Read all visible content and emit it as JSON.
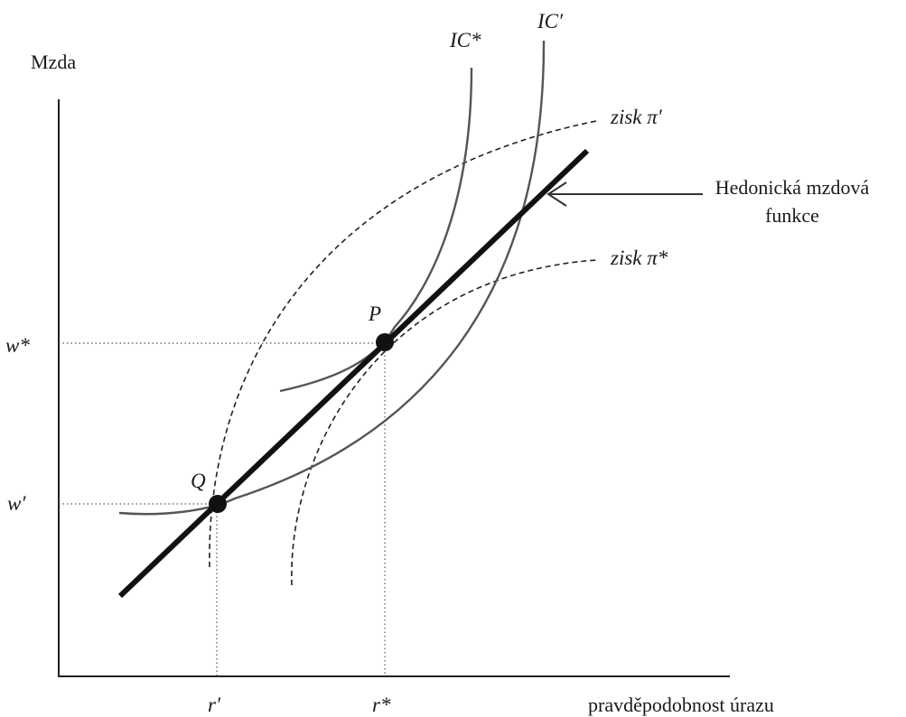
{
  "y_axis_label": "Mzda",
  "x_axis_label": "pravděpodobnost úrazu",
  "hedonic_label_line1": "Hedonická mzdová",
  "hedonic_label_line2": "funkce",
  "ic_star_label": "IC*",
  "ic_prime_label": "IC′",
  "profit_prime_label": "zisk  π′",
  "profit_star_label": "zisk  π*",
  "point_p_label": "P",
  "point_q_label": "Q",
  "w_star_label": "w*",
  "w_prime_label": "w′",
  "r_prime_label": "r′",
  "r_star_label": "r*"
}
